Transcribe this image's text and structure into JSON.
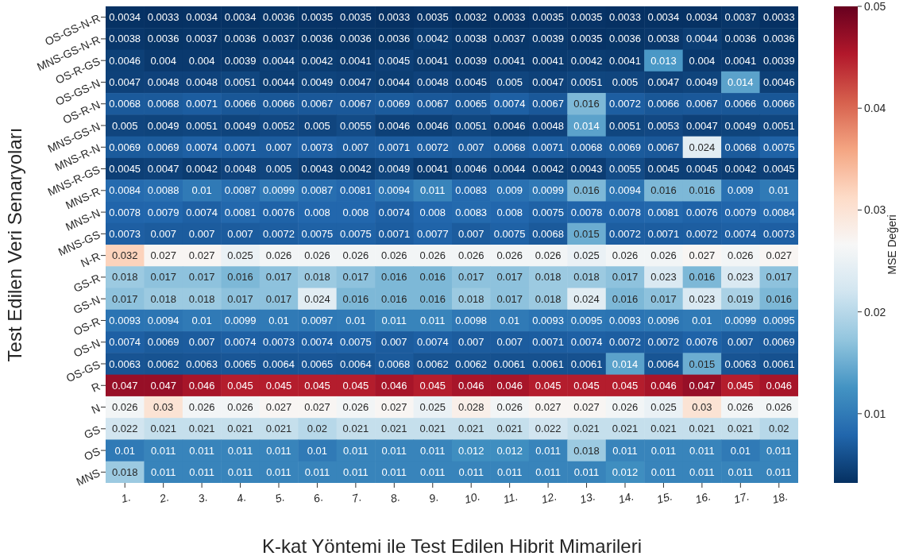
{
  "chart_data": {
    "type": "heatmap",
    "xlabel": "K-kat Yöntemi ile Test Edilen Hibrit Mimarileri",
    "ylabel": "Test Edilen Veri Senaryoları",
    "clabel": "MSE Değeri",
    "categories": [
      "1.",
      "2.",
      "3.",
      "4.",
      "5.",
      "6.",
      "7.",
      "8.",
      "9.",
      "10.",
      "11.",
      "12.",
      "13.",
      "14.",
      "15.",
      "16.",
      "17.",
      "18."
    ],
    "y_categories": [
      "OS-GS-N-R",
      "MNS-GS-N-R",
      "OS-R-GS",
      "OS-GS-N",
      "OS-R-N",
      "MNS-GS-N",
      "MNS-R-N",
      "MNS-R-GS",
      "MNS-R",
      "MNS-N",
      "MNS-GS",
      "N-R",
      "GS-R",
      "GS-N",
      "OS-R",
      "OS-N",
      "OS-GS",
      "R",
      "N",
      "GS",
      "OS",
      "MNS"
    ],
    "cells": [
      [
        0.0034,
        0.0033,
        0.0034,
        0.0034,
        0.0036,
        0.0035,
        0.0035,
        0.0033,
        0.0035,
        0.0032,
        0.0033,
        0.0035,
        0.0035,
        0.0033,
        0.0034,
        0.0034,
        0.0037,
        0.0033
      ],
      [
        0.0038,
        0.0036,
        0.0037,
        0.0036,
        0.0037,
        0.0036,
        0.0036,
        0.0036,
        0.0042,
        0.0038,
        0.0037,
        0.0039,
        0.0035,
        0.0036,
        0.0038,
        0.0044,
        0.0036,
        0.0036
      ],
      [
        0.0046,
        0.004,
        0.004,
        0.0039,
        0.0044,
        0.0042,
        0.0041,
        0.0045,
        0.0041,
        0.0039,
        0.0041,
        0.0041,
        0.0042,
        0.0041,
        0.013,
        0.004,
        0.0041,
        0.0039
      ],
      [
        0.0047,
        0.0048,
        0.0048,
        0.0051,
        0.0044,
        0.0049,
        0.0047,
        0.0044,
        0.0048,
        0.0045,
        0.005,
        0.0047,
        0.0051,
        0.005,
        0.0047,
        0.0049,
        0.014,
        0.0046
      ],
      [
        0.0068,
        0.0068,
        0.0071,
        0.0066,
        0.0066,
        0.0067,
        0.0067,
        0.0069,
        0.0067,
        0.0065,
        0.0074,
        0.0067,
        0.016,
        0.0072,
        0.0066,
        0.0067,
        0.0066,
        0.0066
      ],
      [
        0.005,
        0.0049,
        0.0051,
        0.0049,
        0.0052,
        0.005,
        0.0055,
        0.0046,
        0.0046,
        0.0051,
        0.0046,
        0.0048,
        0.014,
        0.0051,
        0.0053,
        0.0047,
        0.0049,
        0.0051
      ],
      [
        0.0069,
        0.0069,
        0.0074,
        0.0071,
        0.007,
        0.0073,
        0.007,
        0.0071,
        0.0072,
        0.007,
        0.0068,
        0.0071,
        0.0068,
        0.0069,
        0.0067,
        0.024,
        0.0068,
        0.0075
      ],
      [
        0.0045,
        0.0047,
        0.0042,
        0.0048,
        0.005,
        0.0043,
        0.0042,
        0.0049,
        0.0041,
        0.0046,
        0.0044,
        0.0042,
        0.0043,
        0.0055,
        0.0045,
        0.0045,
        0.0042,
        0.0045
      ],
      [
        0.0084,
        0.0088,
        0.01,
        0.0087,
        0.0099,
        0.0087,
        0.0081,
        0.0094,
        0.011,
        0.0083,
        0.009,
        0.0099,
        0.016,
        0.0094,
        0.016,
        0.016,
        0.009,
        0.01
      ],
      [
        0.0078,
        0.0079,
        0.0074,
        0.0081,
        0.0076,
        0.008,
        0.008,
        0.0074,
        0.008,
        0.0083,
        0.008,
        0.0075,
        0.0078,
        0.0078,
        0.0081,
        0.0076,
        0.0079,
        0.0084
      ],
      [
        0.0073,
        0.007,
        0.007,
        0.007,
        0.0072,
        0.0075,
        0.0075,
        0.0071,
        0.0077,
        0.007,
        0.0075,
        0.0068,
        0.015,
        0.0072,
        0.0071,
        0.0072,
        0.0074,
        0.0073
      ],
      [
        0.032,
        0.027,
        0.027,
        0.025,
        0.026,
        0.026,
        0.026,
        0.026,
        0.026,
        0.026,
        0.026,
        0.026,
        0.025,
        0.026,
        0.026,
        0.027,
        0.026,
        0.027
      ],
      [
        0.018,
        0.017,
        0.017,
        0.016,
        0.017,
        0.018,
        0.017,
        0.016,
        0.016,
        0.017,
        0.017,
        0.018,
        0.018,
        0.017,
        0.023,
        0.016,
        0.023,
        0.017
      ],
      [
        0.017,
        0.018,
        0.018,
        0.017,
        0.017,
        0.024,
        0.016,
        0.016,
        0.016,
        0.018,
        0.017,
        0.018,
        0.024,
        0.016,
        0.017,
        0.023,
        0.019,
        0.016
      ],
      [
        0.0093,
        0.0094,
        0.01,
        0.0099,
        0.01,
        0.0097,
        0.01,
        0.011,
        0.011,
        0.0098,
        0.01,
        0.0093,
        0.0095,
        0.0093,
        0.0096,
        0.01,
        0.0099,
        0.0095
      ],
      [
        0.0074,
        0.0069,
        0.007,
        0.0074,
        0.0073,
        0.0074,
        0.0075,
        0.007,
        0.0074,
        0.007,
        0.007,
        0.0071,
        0.0074,
        0.0072,
        0.0072,
        0.0076,
        0.007,
        0.0069
      ],
      [
        0.0063,
        0.0062,
        0.0063,
        0.0065,
        0.0064,
        0.0065,
        0.0064,
        0.0068,
        0.0062,
        0.0062,
        0.0061,
        0.0061,
        0.0061,
        0.014,
        0.0064,
        0.015,
        0.0063,
        0.0061
      ],
      [
        0.047,
        0.047,
        0.046,
        0.045,
        0.045,
        0.045,
        0.045,
        0.046,
        0.045,
        0.046,
        0.046,
        0.045,
        0.045,
        0.045,
        0.046,
        0.047,
        0.045,
        0.046
      ],
      [
        0.026,
        0.03,
        0.026,
        0.026,
        0.027,
        0.027,
        0.026,
        0.027,
        0.025,
        0.028,
        0.026,
        0.027,
        0.027,
        0.026,
        0.025,
        0.03,
        0.026,
        0.026
      ],
      [
        0.022,
        0.021,
        0.021,
        0.021,
        0.021,
        0.02,
        0.021,
        0.021,
        0.021,
        0.021,
        0.021,
        0.022,
        0.021,
        0.021,
        0.021,
        0.021,
        0.021,
        0.02
      ],
      [
        0.01,
        0.011,
        0.011,
        0.011,
        0.011,
        0.01,
        0.011,
        0.011,
        0.011,
        0.012,
        0.012,
        0.011,
        0.018,
        0.011,
        0.011,
        0.011,
        0.01,
        0.011
      ],
      [
        0.018,
        0.011,
        0.011,
        0.011,
        0.011,
        0.011,
        0.011,
        0.011,
        0.011,
        0.011,
        0.011,
        0.011,
        0.011,
        0.012,
        0.011,
        0.011,
        0.011,
        0.011
      ]
    ],
    "clim": [
      0.0032,
      0.05
    ],
    "cticks": [
      0.01,
      0.02,
      0.03,
      0.04,
      0.05
    ],
    "data_labels": true
  }
}
